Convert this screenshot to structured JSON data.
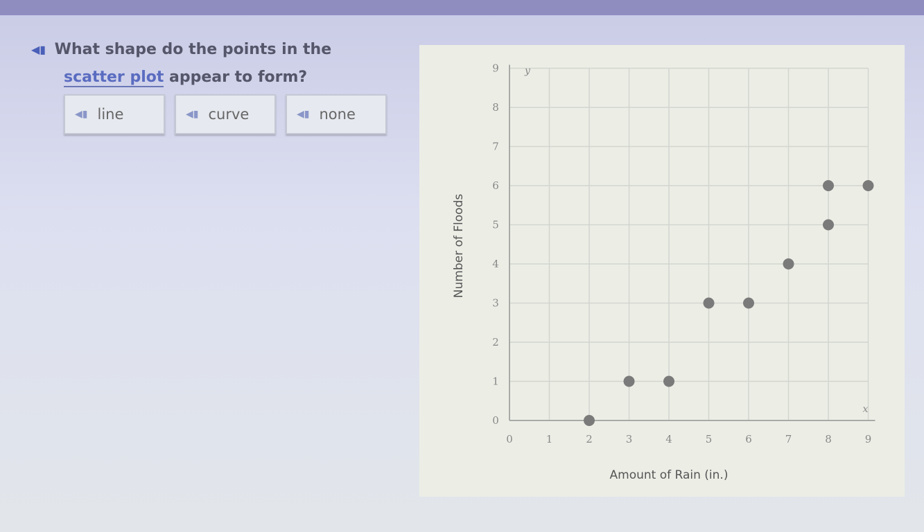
{
  "question": {
    "prefix": "What shape do the points in the",
    "glossary_term": "scatter plot",
    "suffix": "appear to form?",
    "audio_icon": "speaker-icon"
  },
  "options": [
    {
      "label": "line"
    },
    {
      "label": "curve"
    },
    {
      "label": "none"
    }
  ],
  "chart_data": {
    "type": "scatter",
    "xlabel": "Amount of Rain (in.)",
    "ylabel": "Number of Floods",
    "x_axis_letter": "x",
    "y_axis_letter": "y",
    "xlim": [
      0,
      9
    ],
    "ylim": [
      0,
      9
    ],
    "xticks": [
      0,
      1,
      2,
      3,
      4,
      5,
      6,
      7,
      8,
      9
    ],
    "yticks": [
      0,
      1,
      2,
      3,
      4,
      5,
      6,
      7,
      8,
      9
    ],
    "grid": true,
    "point_color": "#7a7a7a",
    "points": [
      [
        2,
        0
      ],
      [
        3,
        1
      ],
      [
        4,
        1
      ],
      [
        5,
        3
      ],
      [
        6,
        3
      ],
      [
        7,
        4
      ],
      [
        8,
        5
      ],
      [
        8,
        6
      ],
      [
        9,
        6
      ]
    ]
  }
}
